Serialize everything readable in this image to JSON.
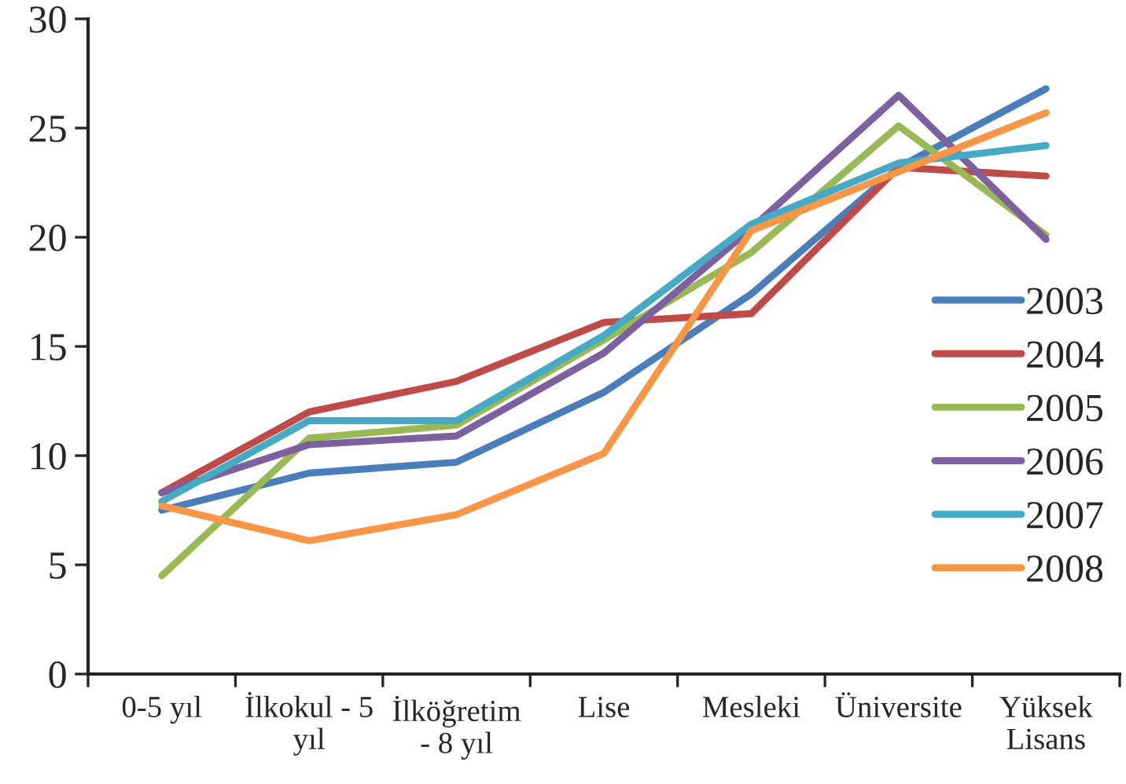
{
  "chart_data": {
    "type": "line",
    "categories": [
      "0-5 yıl",
      "İlkokul - 5\nyıl",
      "İlköğretim\n- 8 yıl",
      "Lise",
      "Mesleki",
      "Üniversite",
      "Yüksek\nLisans"
    ],
    "series": [
      {
        "name": "2003",
        "color": "#4a7ebb",
        "values": [
          7.5,
          9.2,
          9.7,
          12.9,
          17.4,
          23.2,
          26.8
        ]
      },
      {
        "name": "2004",
        "color": "#be4b48",
        "values": [
          8.3,
          12.0,
          13.4,
          16.1,
          16.5,
          23.2,
          22.8
        ]
      },
      {
        "name": "2005",
        "color": "#98b954",
        "values": [
          4.5,
          10.8,
          11.4,
          15.3,
          19.3,
          25.1,
          20.1
        ]
      },
      {
        "name": "2006",
        "color": "#7d60a0",
        "values": [
          8.3,
          10.5,
          10.9,
          14.7,
          20.4,
          26.5,
          19.9
        ]
      },
      {
        "name": "2007",
        "color": "#46aac5",
        "values": [
          7.9,
          11.6,
          11.6,
          15.5,
          20.6,
          23.4,
          24.2
        ]
      },
      {
        "name": "2008",
        "color": "#f79646",
        "values": [
          7.7,
          6.1,
          7.3,
          10.1,
          20.3,
          23.0,
          25.7
        ]
      }
    ],
    "ylim": [
      0,
      30
    ],
    "yticks": [
      0,
      5,
      10,
      15,
      20,
      25,
      30
    ],
    "grid": false,
    "legend": "right",
    "marker": "none",
    "line_style": "solid"
  }
}
